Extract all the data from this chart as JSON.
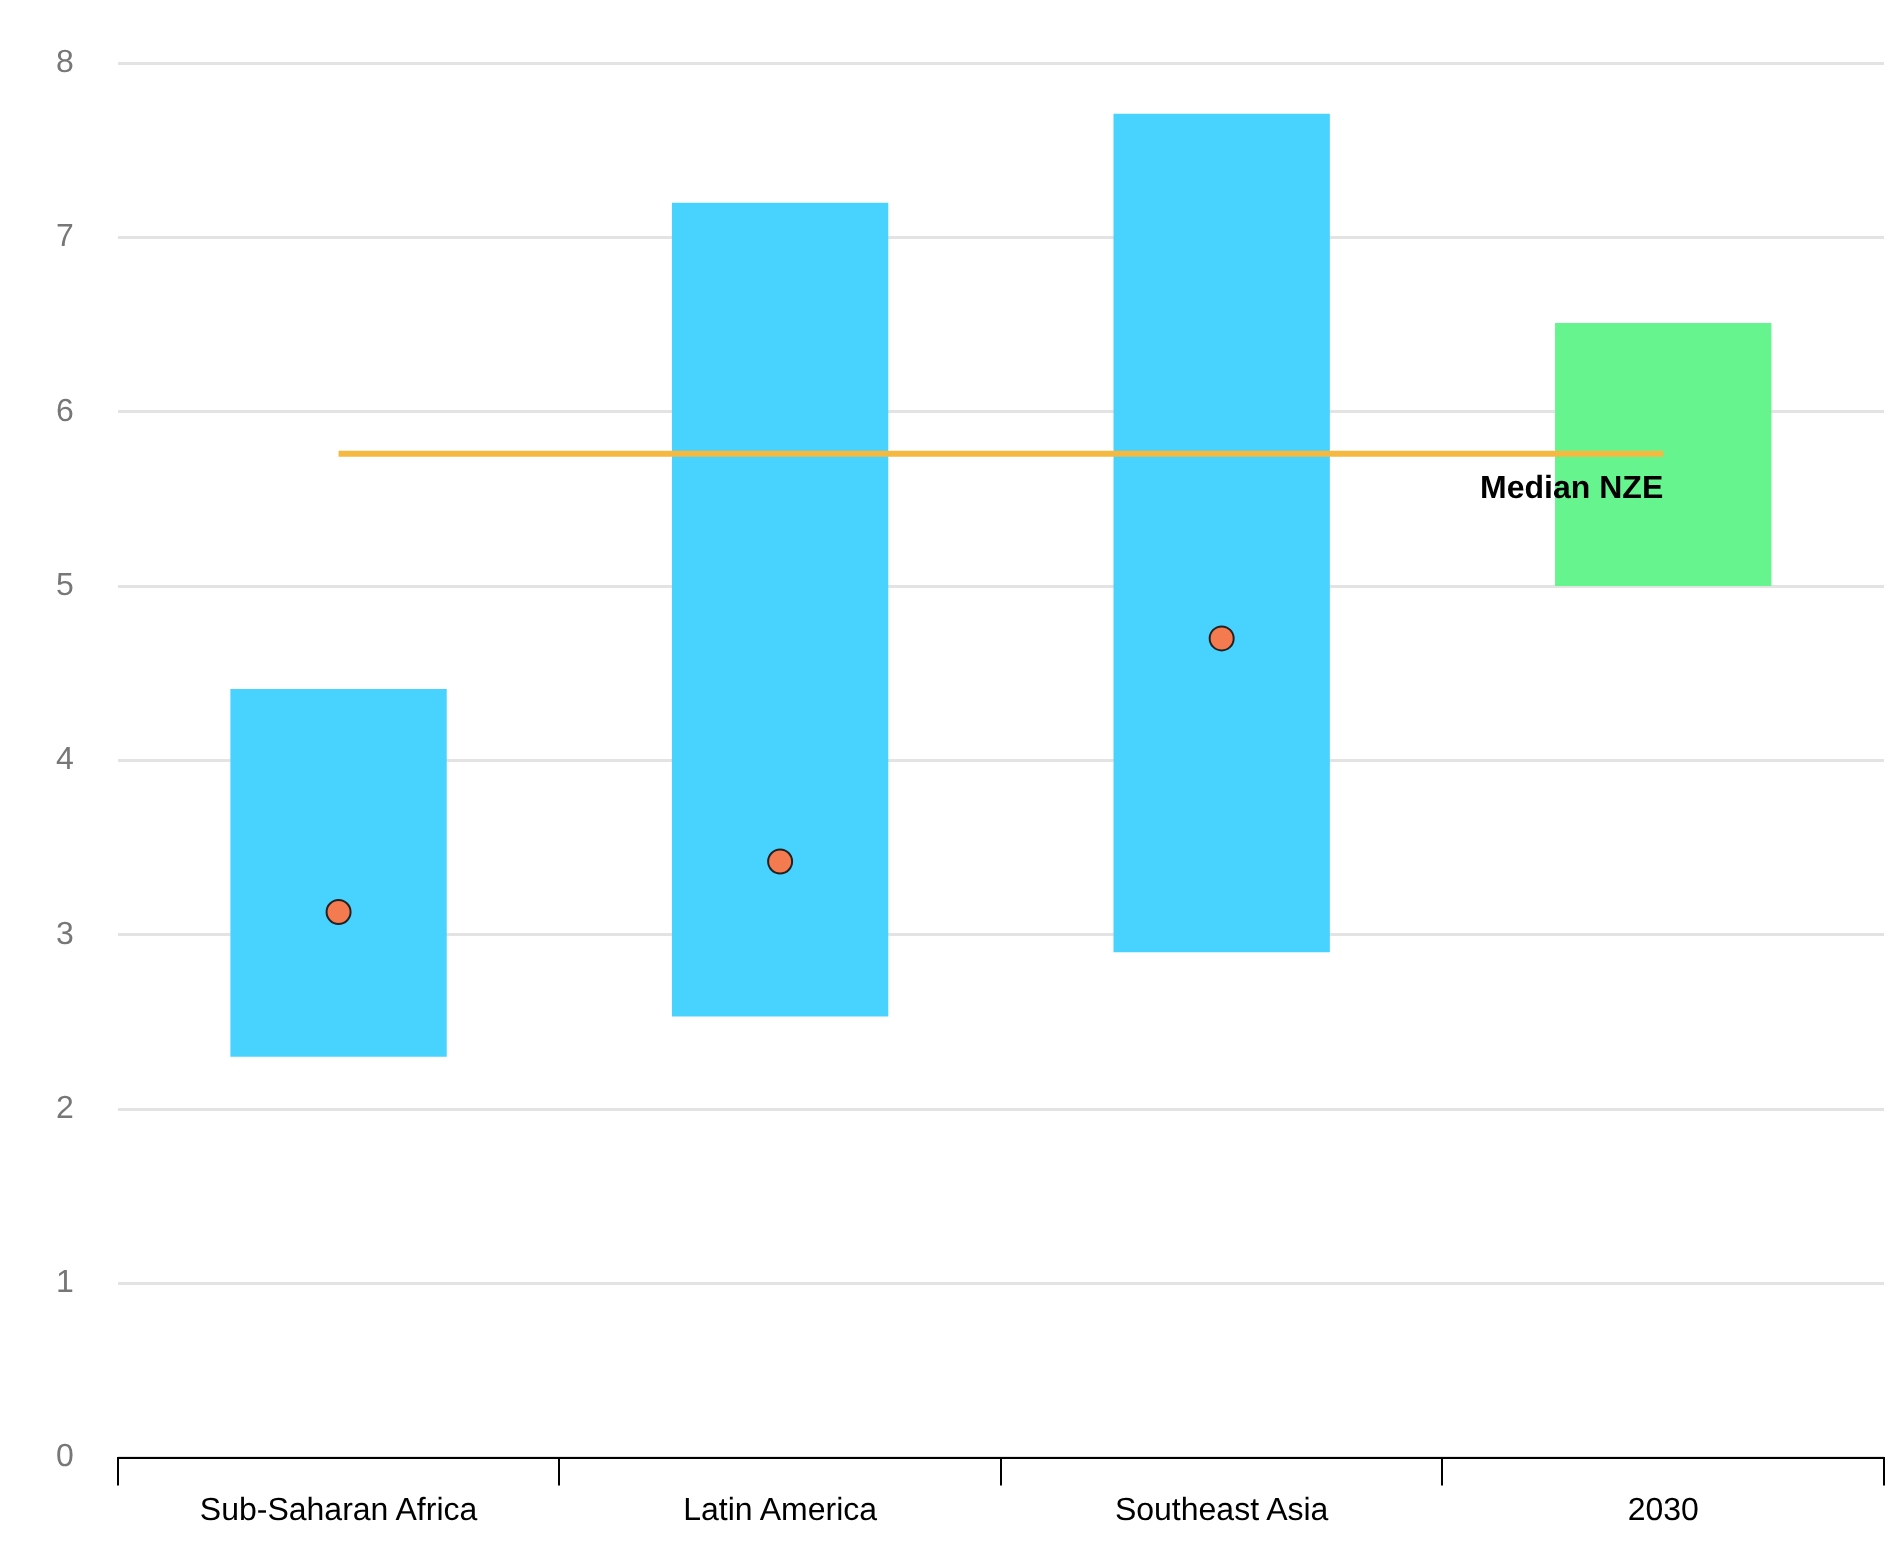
{
  "chart_data": {
    "type": "bar",
    "categories": [
      "Sub-Saharan Africa",
      "Latin America",
      "Southeast Asia",
      "2030"
    ],
    "series": [
      {
        "colors": [
          "#48d3ff",
          "#48d3ff",
          "#48d3ff",
          "#66f48e"
        ],
        "base": [
          2.3,
          2.53,
          2.9,
          5.0
        ],
        "values": [
          2.11,
          4.67,
          4.81,
          1.51
        ]
      },
      {
        "type": "scatter",
        "x": [
          "Sub-Saharan Africa",
          "Latin America",
          "Southeast Asia"
        ],
        "values": [
          3.13,
          3.42,
          4.7
        ],
        "color": "#f47a50",
        "marker": "circle"
      },
      {
        "type": "line",
        "name": "Median NZE",
        "values": [
          5.76,
          5.76,
          5.76,
          5.76
        ],
        "color": "#f5b942"
      }
    ],
    "ylim": [
      0,
      8
    ],
    "yticks": [
      0,
      1,
      2,
      3,
      4,
      5,
      6,
      7,
      8
    ],
    "grid": "y",
    "legend": false
  }
}
